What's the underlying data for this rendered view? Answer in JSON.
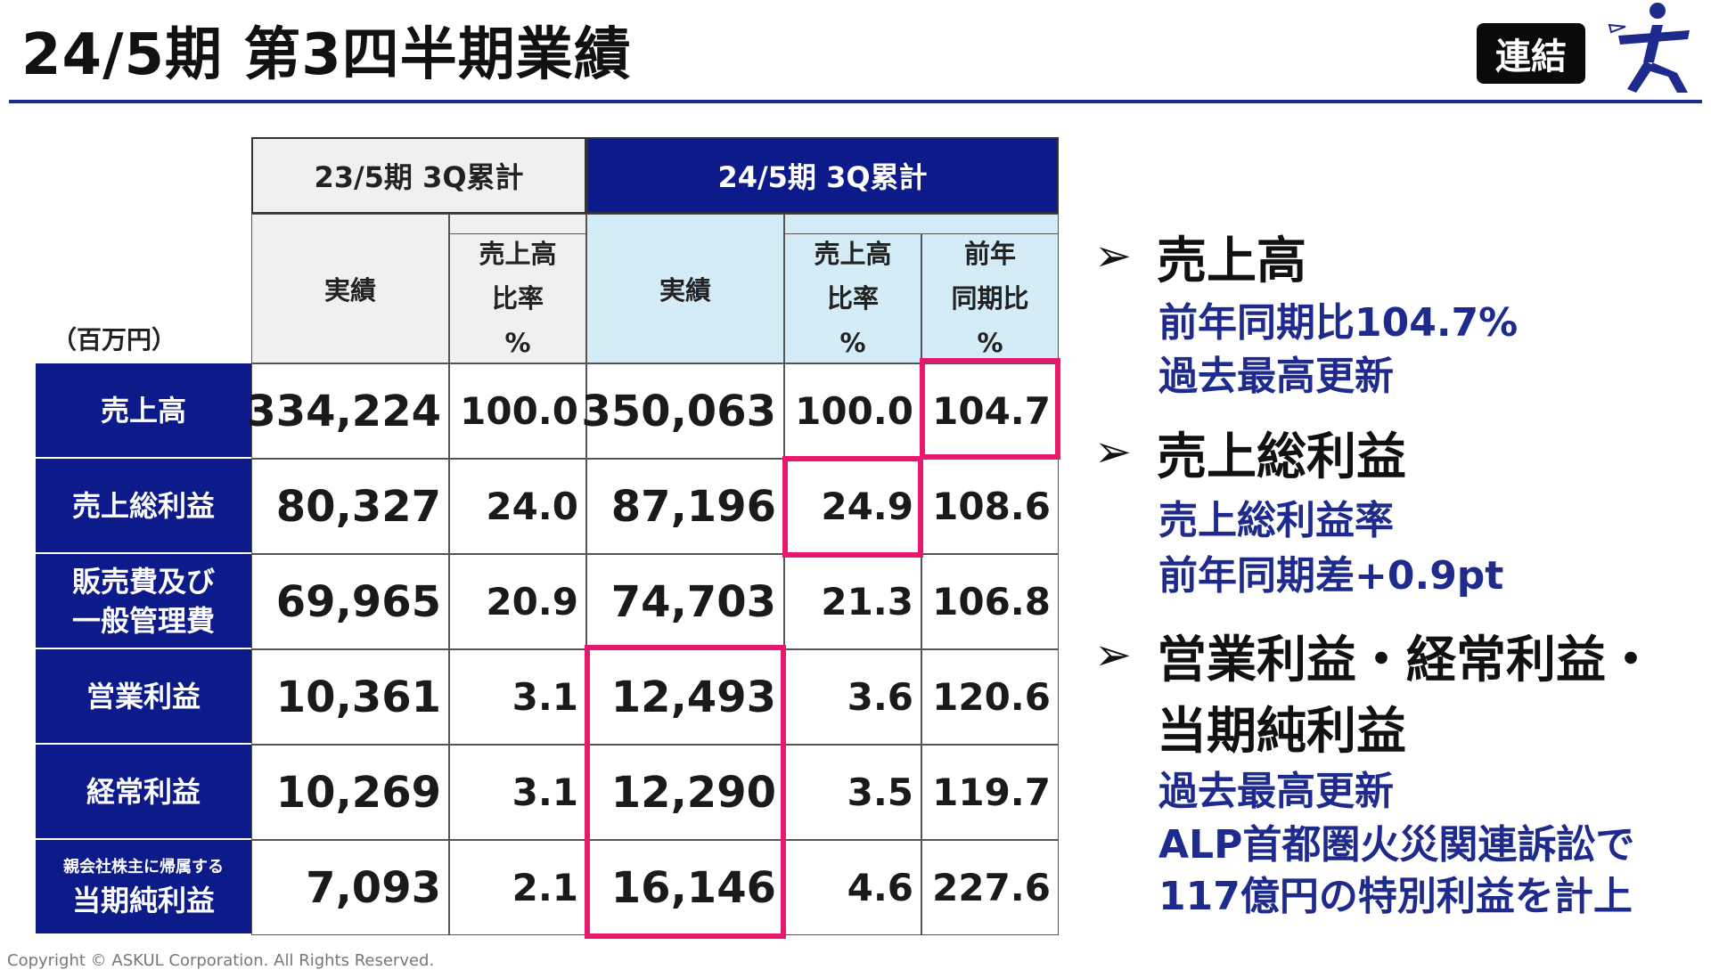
{
  "header": {
    "title": "24/5期 第3四半期業績",
    "badge": "連結"
  },
  "table": {
    "unit": "（百万円）",
    "prev_period": "23/5期 3Q累計",
    "cur_period": "24/5期 3Q累計",
    "sub_headers": {
      "prev_actual": "実績",
      "prev_ratio": [
        "売上高",
        "比率",
        "%"
      ],
      "cur_actual": "実績",
      "cur_ratio": [
        "売上高",
        "比率",
        "%"
      ],
      "cur_yoy": [
        "前年",
        "同期比",
        "%"
      ]
    },
    "rows": [
      {
        "label": [
          "売上高"
        ],
        "prev_actual": "334,224",
        "prev_ratio": "100.0",
        "cur_actual": "350,063",
        "cur_ratio": "100.0",
        "yoy": "104.7"
      },
      {
        "label": [
          "売上総利益"
        ],
        "prev_actual": "80,327",
        "prev_ratio": "24.0",
        "cur_actual": "87,196",
        "cur_ratio": "24.9",
        "yoy": "108.6"
      },
      {
        "label": [
          "販売費及び",
          "一般管理費"
        ],
        "prev_actual": "69,965",
        "prev_ratio": "20.9",
        "cur_actual": "74,703",
        "cur_ratio": "21.3",
        "yoy": "106.8"
      },
      {
        "label": [
          "営業利益"
        ],
        "prev_actual": "10,361",
        "prev_ratio": "3.1",
        "cur_actual": "12,493",
        "cur_ratio": "3.6",
        "yoy": "120.6"
      },
      {
        "label": [
          "経常利益"
        ],
        "prev_actual": "10,269",
        "prev_ratio": "3.1",
        "cur_actual": "12,290",
        "cur_ratio": "3.5",
        "yoy": "119.7"
      },
      {
        "label_small": "親会社株主に帰属する",
        "label": [
          "当期純利益"
        ],
        "prev_actual": "7,093",
        "prev_ratio": "2.1",
        "cur_actual": "16,146",
        "cur_ratio": "4.6",
        "yoy": "227.6"
      }
    ]
  },
  "highlights": [
    {
      "heading": "売上高",
      "notes": [
        "前年同期比104.7%",
        "過去最高更新"
      ]
    },
    {
      "heading": "売上総利益",
      "notes": [
        "売上総利益率",
        "前年同期差+0.9pt"
      ]
    },
    {
      "heading_lines": [
        "営業利益・経常利益・",
        "当期純利益"
      ],
      "notes": [
        "過去最高更新",
        "ALP首都圏火災関連訴訟で",
        "117億円の特別利益を計上"
      ]
    }
  ],
  "arrow_glyph": "➢",
  "footer": {
    "copyright": "Copyright © ASKUL Corporation. All Rights Reserved."
  },
  "colors": {
    "navy": "#0c1a8a",
    "light_blue": "#d3ecf8",
    "highlight_pink": "#e6196e",
    "text_blue": "#1e2a8c"
  }
}
